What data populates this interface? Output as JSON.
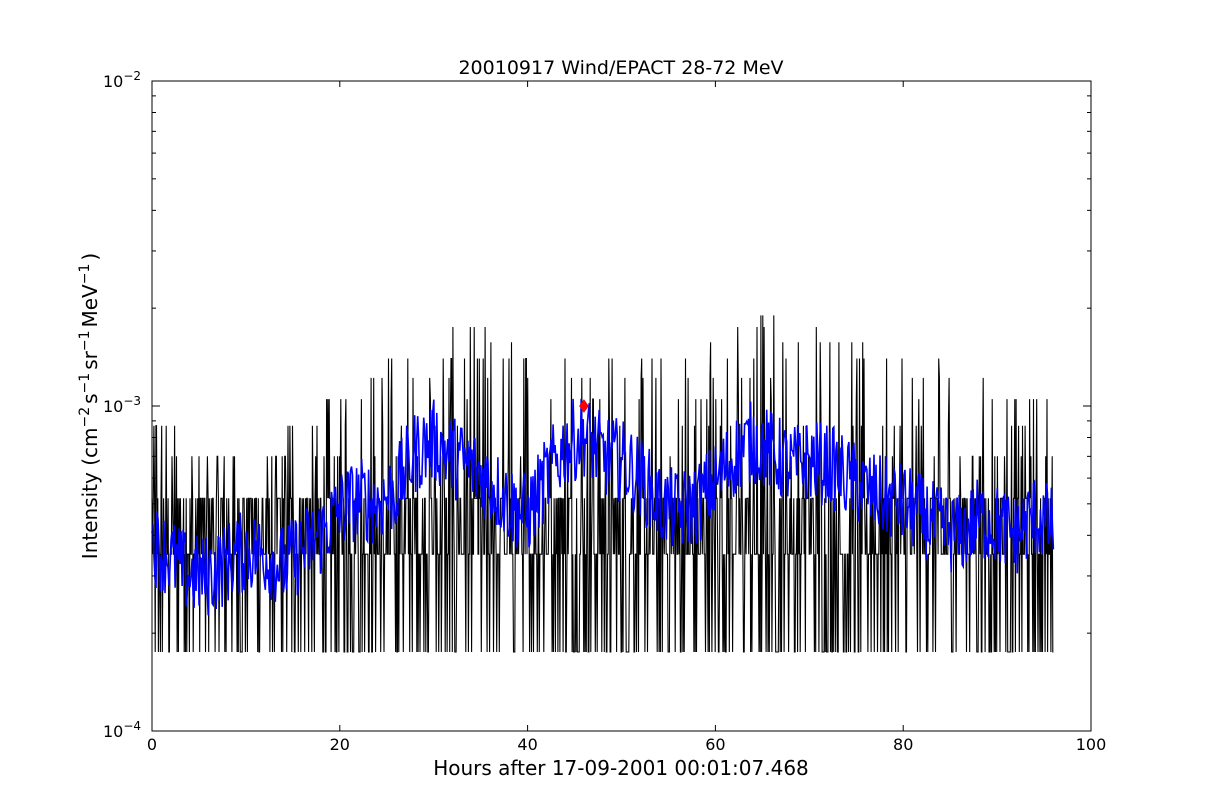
{
  "chart_data": {
    "type": "line",
    "title": "20010917 Wind/EPACT 28-72 MeV",
    "xlabel": "Hours after 17-09-2001 00:01:07.468",
    "ylabel": "Intensity (cm^-2 s^-1 sr^-1 MeV^-1)",
    "ylabel_parts": [
      "Intensity (cm",
      "−2",
      "s",
      "−1",
      "sr",
      "−1",
      "MeV",
      "−1",
      ")"
    ],
    "xlim": [
      0,
      100
    ],
    "ylim": [
      0.0001,
      0.01
    ],
    "yscale": "log",
    "grid": false,
    "x_ticks": [
      {
        "value": 0,
        "label": "0"
      },
      {
        "value": 20,
        "label": "20"
      },
      {
        "value": 40,
        "label": "40"
      },
      {
        "value": 60,
        "label": "60"
      },
      {
        "value": 80,
        "label": "80"
      },
      {
        "value": 100,
        "label": "100"
      }
    ],
    "y_ticks": [
      {
        "value": 0.0001,
        "base": "10",
        "exp": "−4"
      },
      {
        "value": 0.001,
        "base": "10",
        "exp": "−3"
      },
      {
        "value": 0.01,
        "base": "10",
        "exp": "−2"
      }
    ],
    "series": [
      {
        "kind": "raw",
        "color": "#000000",
        "x_range": [
          0,
          96
        ],
        "levels": [
          0.000175,
          0.00035,
          0.00052,
          0.0007,
          0.00087,
          0.00105,
          0.00122,
          0.0014,
          0.00157,
          0.00175,
          0.0019,
          0.002
        ],
        "envelope": {
          "x": [
            0,
            5,
            10,
            15,
            20,
            25,
            29,
            33,
            38,
            42,
            46,
            50,
            55,
            60,
            64,
            70,
            75,
            80,
            85,
            90,
            96
          ],
          "min": [
            0.000175,
            0.000175,
            0.000175,
            0.000175,
            0.000175,
            0.000175,
            0.000175,
            0.000175,
            0.000175,
            0.000175,
            0.000175,
            0.000175,
            0.000175,
            0.000175,
            0.000175,
            0.000175,
            0.000175,
            0.000175,
            0.000175,
            0.000175,
            0.000175
          ],
          "max": [
            0.00105,
            0.0007,
            0.0007,
            0.0009,
            0.0012,
            0.0015,
            0.0019,
            0.0018,
            0.0017,
            0.0016,
            0.002,
            0.0016,
            0.0015,
            0.0016,
            0.002,
            0.0018,
            0.0017,
            0.0015,
            0.0014,
            0.0012,
            0.00105
          ]
        }
      },
      {
        "kind": "smoothed",
        "color": "#0000ff",
        "x": [
          0,
          2,
          4,
          6,
          8,
          10,
          12,
          14,
          16,
          18,
          20,
          22,
          24,
          26,
          28,
          30,
          32,
          34,
          36,
          38,
          40,
          42,
          44,
          46,
          48,
          50,
          52,
          54,
          56,
          58,
          60,
          62,
          64,
          66,
          68,
          70,
          72,
          74,
          76,
          78,
          80,
          82,
          84,
          86,
          88,
          90,
          92,
          94,
          96
        ],
        "y": [
          0.00038,
          0.00034,
          0.0003,
          0.0003,
          0.00033,
          0.00036,
          0.00035,
          0.00032,
          0.00036,
          0.0004,
          0.00048,
          0.00052,
          0.0005,
          0.00055,
          0.00072,
          0.00078,
          0.0007,
          0.00065,
          0.00058,
          0.0005,
          0.00046,
          0.0006,
          0.00075,
          0.00082,
          0.0007,
          0.00068,
          0.0006,
          0.0005,
          0.00047,
          0.0005,
          0.00058,
          0.0007,
          0.00078,
          0.00072,
          0.00065,
          0.00068,
          0.00066,
          0.0006,
          0.00055,
          0.00052,
          0.0005,
          0.00046,
          0.00042,
          0.0004,
          0.00045,
          0.00043,
          0.0004,
          0.00046,
          0.00042
        ],
        "spread": 1.35
      }
    ],
    "markers": [
      {
        "shape": "diamond",
        "color": "#ff0000",
        "x": 46.0,
        "y": 0.001
      }
    ]
  }
}
